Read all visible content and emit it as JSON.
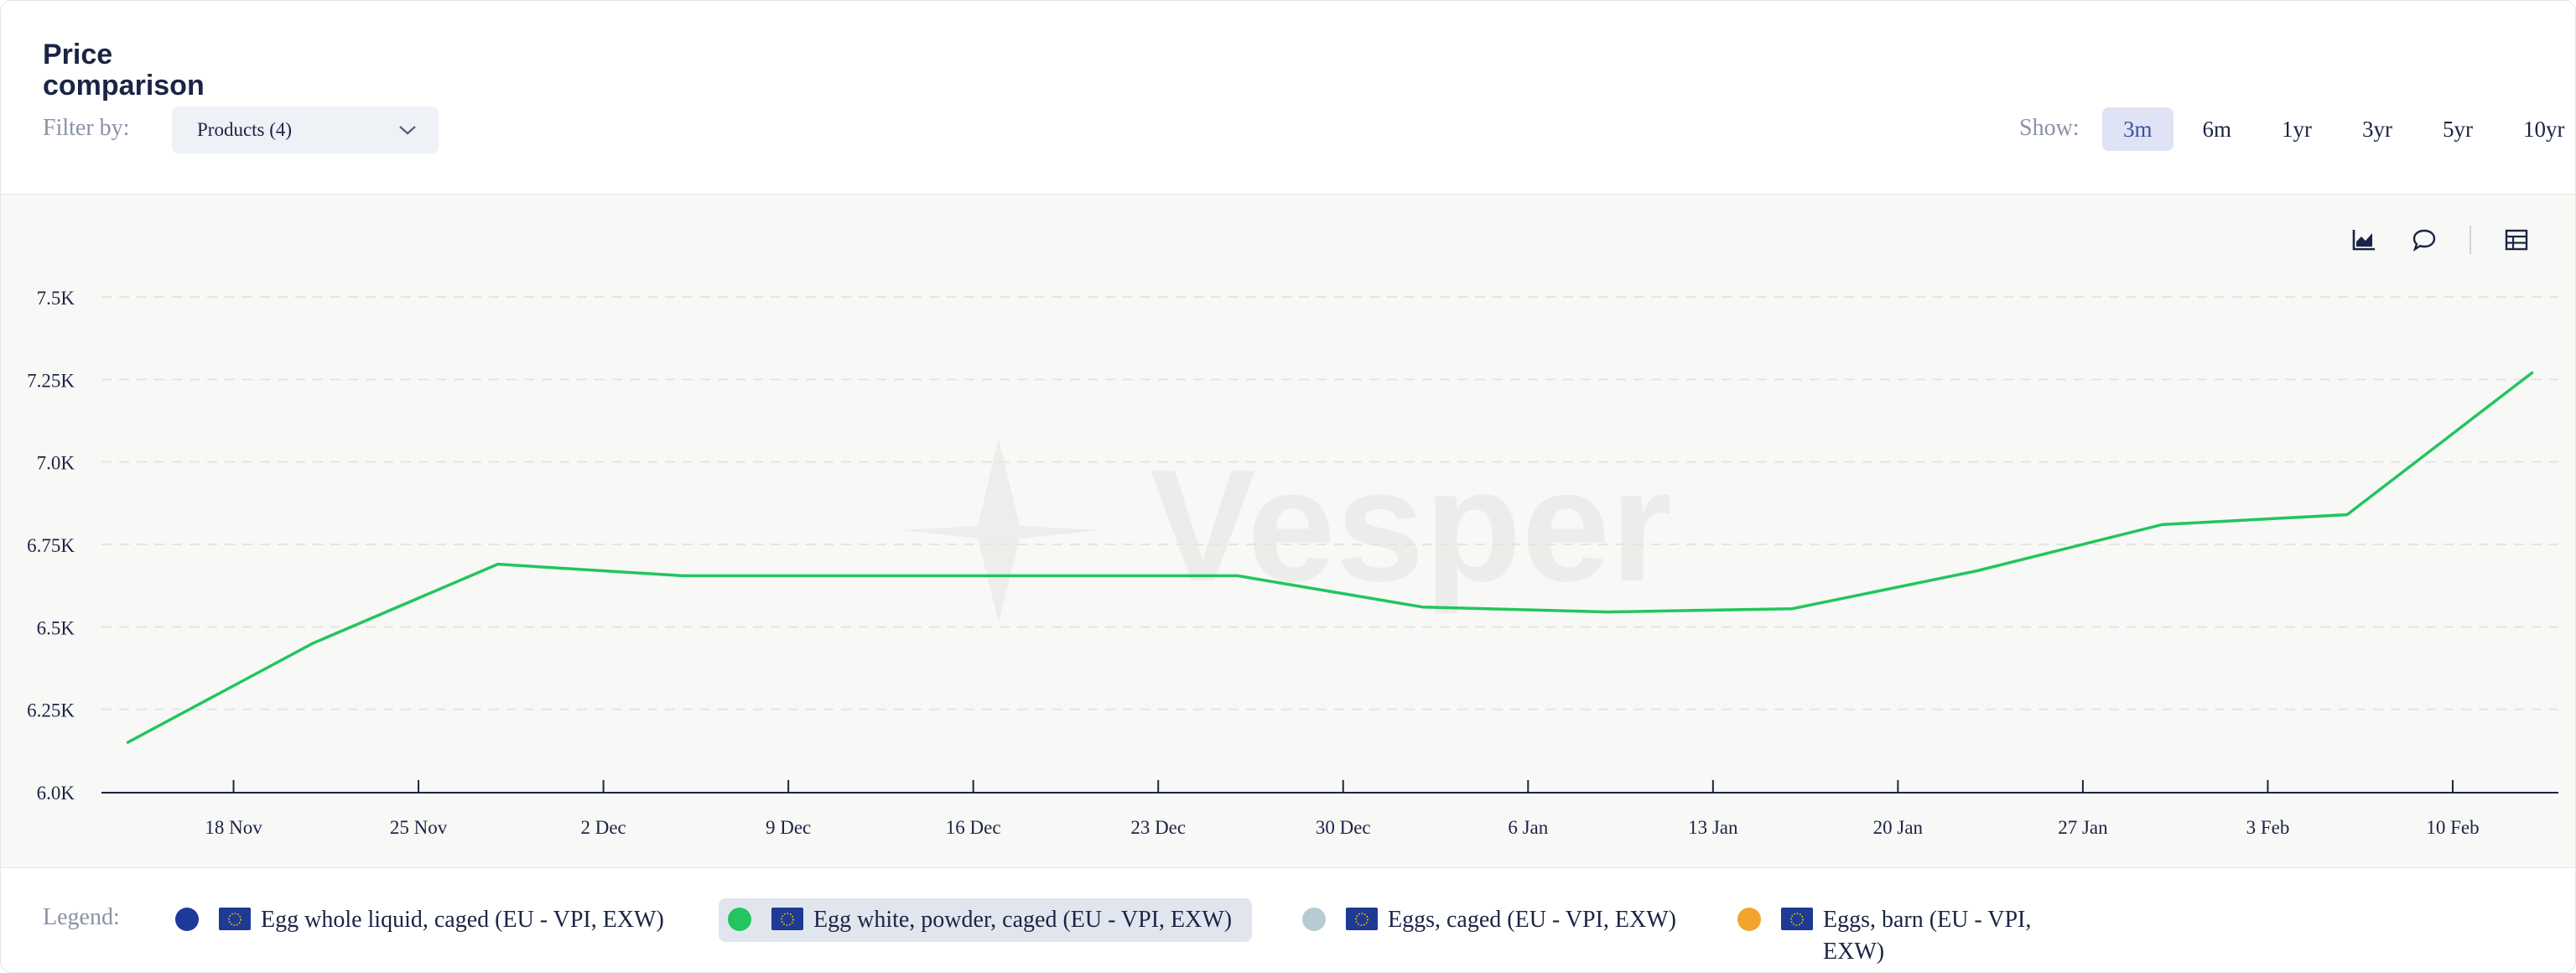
{
  "header": {
    "title": "Price comparison",
    "filter_label": "Filter by:",
    "filter_value": "Products (4)",
    "show_label": "Show:",
    "periods": [
      "3m",
      "6m",
      "1yr",
      "3yr",
      "5yr",
      "10yr"
    ],
    "active_period": "3m"
  },
  "watermark": "Vesper",
  "tools": [
    "chart-icon",
    "comment-icon",
    "table-icon"
  ],
  "legend": {
    "label": "Legend:",
    "items": [
      {
        "name": "Egg whole liquid, caged (EU - VPI, EXW)",
        "color": "#1b3a9a",
        "active": false
      },
      {
        "name": "Egg white, powder, caged (EU - VPI, EXW)",
        "color": "#22c55e",
        "active": true
      },
      {
        "name": "Eggs, caged (EU - VPI, EXW)",
        "color": "#b6ccd2",
        "active": false
      },
      {
        "name": "Eggs, barn (EU - VPI, EXW)",
        "color": "#f2a52a",
        "active": false
      }
    ]
  },
  "chart_data": {
    "type": "line",
    "x_tick_labels": [
      "18 Nov",
      "25 Nov",
      "2 Dec",
      "9 Dec",
      "16 Dec",
      "23 Dec",
      "30 Dec",
      "6 Jan",
      "13 Jan",
      "20 Jan",
      "27 Jan",
      "3 Feb",
      "10 Feb"
    ],
    "y_ticks": [
      6000,
      6250,
      6500,
      6750,
      7000,
      7250,
      7500
    ],
    "y_tick_labels": [
      "6.0K",
      "6.25K",
      "6.5K",
      "6.75K",
      "7.0K",
      "7.25K",
      "7.5K"
    ],
    "ylim": [
      6000,
      7500
    ],
    "xlim": [
      "2024-11-13",
      "2025-02-14"
    ],
    "grid": true,
    "series": [
      {
        "name": "Egg white, powder, caged (EU - VPI, EXW)",
        "color": "#22c55e",
        "points": [
          {
            "x": "2024-11-14",
            "y": 6150
          },
          {
            "x": "2024-11-21",
            "y": 6450
          },
          {
            "x": "2024-11-28",
            "y": 6690
          },
          {
            "x": "2024-12-05",
            "y": 6655
          },
          {
            "x": "2024-12-12",
            "y": 6655
          },
          {
            "x": "2024-12-19",
            "y": 6655
          },
          {
            "x": "2024-12-26",
            "y": 6655
          },
          {
            "x": "2025-01-02",
            "y": 6560
          },
          {
            "x": "2025-01-09",
            "y": 6545
          },
          {
            "x": "2025-01-16",
            "y": 6555
          },
          {
            "x": "2025-01-23",
            "y": 6670
          },
          {
            "x": "2025-01-30",
            "y": 6810
          },
          {
            "x": "2025-02-06",
            "y": 6840
          },
          {
            "x": "2025-02-13",
            "y": 7270
          }
        ]
      }
    ]
  }
}
